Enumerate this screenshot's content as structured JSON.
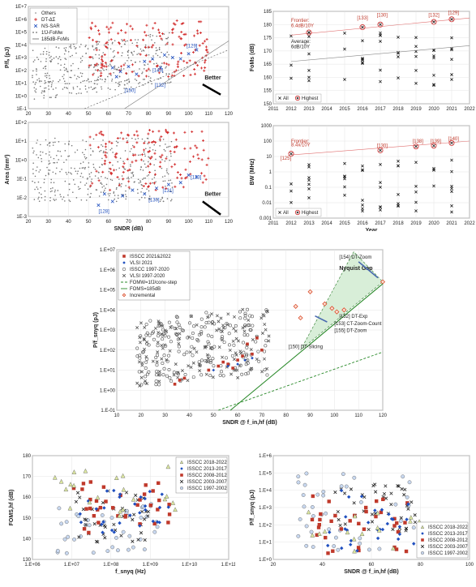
{
  "chart_data": [
    {
      "id": "p1",
      "type": "scatter",
      "xlabel": "",
      "ylabel": "P/fₛ (pJ)",
      "xlim": [
        20,
        120
      ],
      "ylim": [
        -1,
        7
      ],
      "yscale": "log",
      "xticks": [
        "20",
        "30",
        "40",
        "50",
        "60",
        "70",
        "80",
        "90",
        "100",
        "110",
        "120"
      ],
      "yticks": [
        "1E-1",
        "1E+0",
        "1E+1",
        "1E+2",
        "1E+3",
        "1E+4",
        "1E+5",
        "1E+6",
        "1E+7"
      ],
      "legend": [
        "Others",
        "DT-ΔΣ",
        "NS-SAR",
        "1fJ-FoMw",
        "185dB-FoMs"
      ],
      "annotations": [
        "[129]",
        "[143]",
        "[132]",
        "[150]",
        "Better"
      ],
      "colors": {
        "others": "#888888",
        "dt": "#d32f2f",
        "ns": "#1f4fbf"
      }
    },
    {
      "id": "p2",
      "type": "scatter",
      "xlabel": "SNDR (dB)",
      "ylabel": "Area (mm²)",
      "xlim": [
        20,
        120
      ],
      "ylim": [
        -3,
        2
      ],
      "yscale": "log",
      "xticks": [
        "20",
        "30",
        "40",
        "50",
        "60",
        "70",
        "80",
        "90",
        "100",
        "110",
        "120"
      ],
      "yticks": [
        "1E-3",
        "1E-2",
        "1E-1",
        "1E+0",
        "1E+1",
        "1E+2"
      ],
      "annotations": [
        "[133]",
        "[131]",
        "[130]",
        "[128]",
        "Better"
      ]
    },
    {
      "id": "p3",
      "type": "scatter",
      "xlabel": "",
      "ylabel": "FoMs (dB)",
      "xlim": [
        2011,
        2022
      ],
      "ylim": [
        150,
        185
      ],
      "xticks": [
        "2011",
        "2012",
        "2013",
        "2014",
        "2015",
        "2016",
        "2017",
        "2018",
        "2019",
        "2020",
        "2021",
        "2022"
      ],
      "yticks": [
        "150",
        "155",
        "160",
        "165",
        "170",
        "175",
        "180",
        "185"
      ],
      "legend": [
        "All",
        "Highest"
      ],
      "annotations": [
        "Frontier:",
        "6.4dB/10Y",
        "Average:",
        "6dB/10Y",
        "[133]",
        "[130]",
        "[132]",
        "[129]"
      ],
      "highest": [
        [
          2013,
          177
        ],
        [
          2016,
          179
        ],
        [
          2017,
          180
        ],
        [
          2020,
          181
        ],
        [
          2021,
          182
        ]
      ]
    },
    {
      "id": "p4",
      "type": "scatter",
      "xlabel": "Year",
      "ylabel": "BW (MHz)",
      "xlim": [
        2011,
        2022
      ],
      "ylim": [
        -3,
        3
      ],
      "yscale": "log",
      "xticks": [
        "2011",
        "2012",
        "2013",
        "2014",
        "2015",
        "2016",
        "2017",
        "2018",
        "2019",
        "2020",
        "2021",
        "2022"
      ],
      "yticks": [
        "0.001",
        "0.01",
        "0.1",
        "1",
        "10",
        "100",
        "1000"
      ],
      "legend": [
        "All",
        "Highest"
      ],
      "annotations": [
        "Frontier:",
        "8.4x/10Y",
        "[125]",
        "[130]",
        "[138]",
        "[139]",
        "[140]"
      ],
      "highest": [
        [
          2012,
          15
        ],
        [
          2017,
          25
        ],
        [
          2019,
          45
        ],
        [
          2020,
          50
        ],
        [
          2021,
          75
        ]
      ]
    },
    {
      "id": "p5",
      "type": "scatter",
      "xlabel": "SNDR @ f_in,hf (dB)",
      "ylabel": "P/f_snyq (pJ)",
      "xlim": [
        10,
        120
      ],
      "ylim": [
        -1,
        7
      ],
      "yscale": "log",
      "xticks": [
        "10",
        "20",
        "30",
        "40",
        "50",
        "60",
        "70",
        "80",
        "90",
        "100",
        "110",
        "120"
      ],
      "yticks": [
        "1.E-01",
        "1.E+00",
        "1.E+01",
        "1.E+02",
        "1.E+03",
        "1.E+04",
        "1.E+05",
        "1.E+06",
        "1.E+07"
      ],
      "legend": [
        "ISSCC 2021&2022",
        "VLSI 2021",
        "ISSCC 1997-2020",
        "VLSI 1997-2020",
        "FOMW=1fJ/conv-step",
        "FOMS=185dB",
        "Incremental"
      ],
      "annotations": [
        "Nyquist Gap",
        "[154] DT-Zoom",
        "[152] DT-Exp",
        "[153] CT-Zoom-Count",
        "[155] DT-Zoom",
        "[150] DT-Slicing"
      ],
      "incremental": [
        [
          84,
          15000
        ],
        [
          86,
          4000
        ],
        [
          90,
          80000
        ],
        [
          96,
          20000
        ],
        [
          99,
          12000
        ],
        [
          101,
          8000
        ],
        [
          104,
          10000
        ],
        [
          120,
          250000
        ]
      ]
    },
    {
      "id": "p6",
      "type": "scatter",
      "xlabel": "f_snyq (Hz)",
      "ylabel": "FOMS,hf (dB)",
      "xlim": [
        6,
        11
      ],
      "ylim": [
        125,
        185
      ],
      "xscale": "log",
      "xticks": [
        "1.E+06",
        "1.E+07",
        "1.E+08",
        "1.E+09",
        "1.E+10",
        "1.E+11"
      ],
      "yticks": [
        "130",
        "140",
        "150",
        "160",
        "170",
        "180"
      ],
      "legend": [
        "ISSCC 2018-2022",
        "ISSCC 2013-2017",
        "ISSCC 2008-2012",
        "ISSCC 2003-2007",
        "ISSCC 1997-2002"
      ]
    },
    {
      "id": "p7",
      "type": "scatter",
      "xlabel": "SNDR @ f_in,hf (dB)",
      "ylabel": "P/f_snyq (pJ)",
      "xlim": [
        20,
        100
      ],
      "ylim": [
        0,
        6
      ],
      "yscale": "log",
      "xticks": [
        "20",
        "40",
        "60",
        "80",
        "100"
      ],
      "yticks": [
        "1.E+0",
        "1.E+1",
        "1.E+2",
        "1.E+3",
        "1.E+4",
        "1.E+5",
        "1.E+6"
      ],
      "legend": [
        "ISSCC 2018-2022",
        "ISSCC 2013-2017",
        "ISSCC 2008-2012",
        "ISSCC 2003-2007",
        "ISSCC 1997-2002"
      ]
    }
  ]
}
